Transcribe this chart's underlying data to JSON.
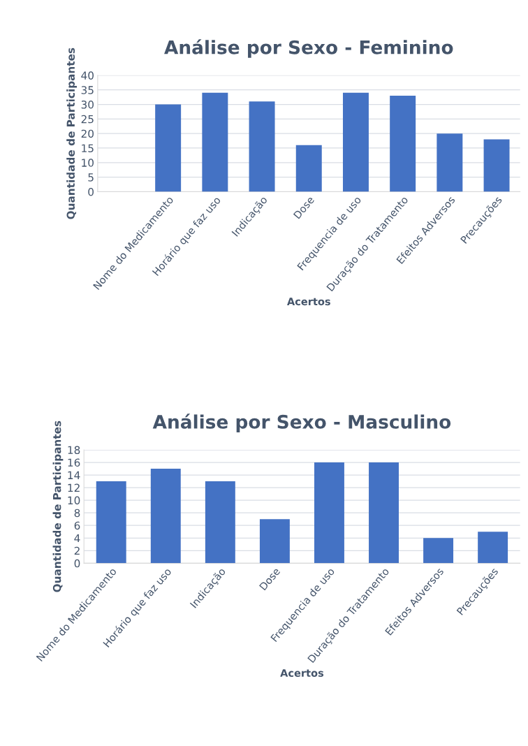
{
  "chart_data": [
    {
      "type": "bar",
      "title": "Análise por Sexo - Feminino",
      "xlabel": "Acertos",
      "ylabel": "Quantidade de Participantes",
      "categories": [
        null,
        "Nome do Medicamento",
        "Horário que faz uso",
        "Indicação",
        "Dose",
        "Frequencia de uso",
        "Duração do Tratamento",
        "Efeitos Adversos",
        "Precauções"
      ],
      "values": [
        null,
        30,
        34,
        31,
        16,
        34,
        33,
        20,
        18
      ],
      "color": "#4472c4",
      "ylim": [
        0,
        40
      ],
      "yticks": [
        0,
        5,
        10,
        15,
        20,
        25,
        30,
        35,
        40
      ],
      "grid": "y"
    },
    {
      "type": "bar",
      "title": "Análise por Sexo - Masculino",
      "xlabel": "Acertos",
      "ylabel": "Quantidade de Participantes",
      "categories": [
        "Nome do Medicamento",
        "Horário que faz uso",
        "Indicação",
        "Dose",
        "Frequencia de uso",
        "Duração do Tratamento",
        "Efeitos Adversos",
        "Precauções"
      ],
      "values": [
        13,
        15,
        13,
        7,
        16,
        16,
        4,
        5
      ],
      "color": "#4472c4",
      "ylim": [
        0,
        18
      ],
      "yticks": [
        0,
        2,
        4,
        6,
        8,
        10,
        12,
        14,
        16,
        18
      ],
      "grid": "y"
    }
  ]
}
